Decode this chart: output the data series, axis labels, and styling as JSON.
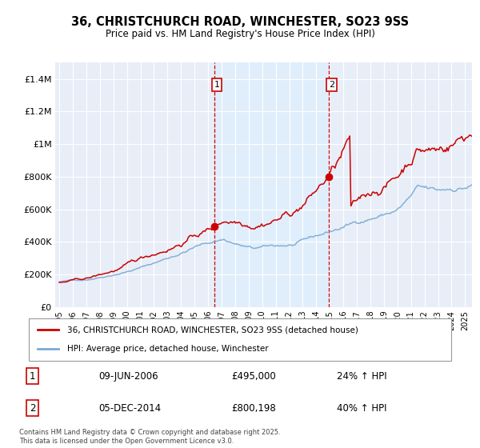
{
  "title": "36, CHRISTCHURCH ROAD, WINCHESTER, SO23 9SS",
  "subtitle": "Price paid vs. HM Land Registry's House Price Index (HPI)",
  "ylim": [
    0,
    1500000
  ],
  "yticks": [
    0,
    200000,
    400000,
    600000,
    800000,
    1000000,
    1200000,
    1400000
  ],
  "ytick_labels": [
    "£0",
    "£200K",
    "£400K",
    "£600K",
    "£800K",
    "£1M",
    "£1.2M",
    "£1.4M"
  ],
  "xlim_start": 1994.7,
  "xlim_end": 2025.5,
  "transaction1_x": 2006.44,
  "transaction1_y": 495000,
  "transaction1_label": "1",
  "transaction1_date": "09-JUN-2006",
  "transaction1_price": "£495,000",
  "transaction1_hpi": "24% ↑ HPI",
  "transaction2_x": 2014.92,
  "transaction2_y": 800198,
  "transaction2_label": "2",
  "transaction2_date": "05-DEC-2014",
  "transaction2_price": "£800,198",
  "transaction2_hpi": "40% ↑ HPI",
  "line_color_red": "#cc0000",
  "line_color_blue": "#7aaad4",
  "shade_color": "#ddeeff",
  "background_color": "#ffffff",
  "plot_bg": "#e8eef8",
  "grid_color": "#ffffff",
  "legend_label_red": "36, CHRISTCHURCH ROAD, WINCHESTER, SO23 9SS (detached house)",
  "legend_label_blue": "HPI: Average price, detached house, Winchester",
  "footnote": "Contains HM Land Registry data © Crown copyright and database right 2025.\nThis data is licensed under the Open Government Licence v3.0.",
  "xtick_years": [
    1995,
    1996,
    1997,
    1998,
    1999,
    2000,
    2001,
    2002,
    2003,
    2004,
    2005,
    2006,
    2007,
    2008,
    2009,
    2010,
    2011,
    2012,
    2013,
    2014,
    2015,
    2016,
    2017,
    2018,
    2019,
    2020,
    2021,
    2022,
    2023,
    2024,
    2025
  ],
  "fig_width": 6.0,
  "fig_height": 5.6,
  "fig_dpi": 100
}
